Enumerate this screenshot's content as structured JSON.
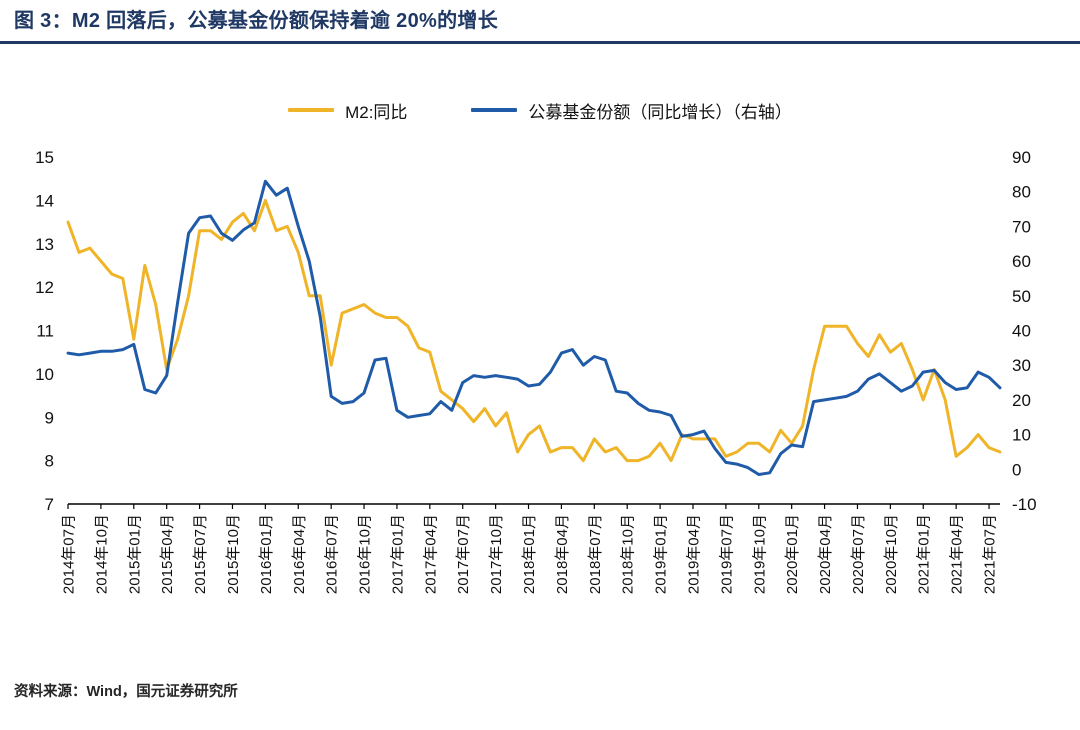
{
  "page": {
    "title": "图 3：M2 回落后，公募基金份额保持着逾 20%的增长",
    "source_note": "资料来源：Wind，国元证券研究所"
  },
  "colors": {
    "accent_navy": "#1F3864",
    "m2_yellow": "#F0B428",
    "fund_blue": "#1F5BA8",
    "axis_black": "#000000"
  },
  "chart_data": {
    "type": "line",
    "title": "",
    "xlabel": "",
    "ylabel_left": "",
    "ylabel_right": "",
    "grid": false,
    "legend_position": "top",
    "x_tick_every": 3,
    "x_tick_labels": [
      "2014年07月",
      "2014年10月",
      "2015年01月",
      "2015年04月",
      "2015年07月",
      "2015年10月",
      "2016年01月",
      "2016年04月",
      "2016年07月",
      "2016年10月",
      "2017年01月",
      "2017年04月",
      "2017年07月",
      "2017年10月",
      "2018年01月",
      "2018年04月",
      "2018年07月",
      "2018年10月",
      "2019年01月",
      "2019年04月",
      "2019年07月",
      "2019年10月",
      "2020年01月",
      "2020年04月",
      "2020年07月",
      "2020年10月",
      "2021年01月",
      "2021年04月",
      "2021年07月"
    ],
    "left_axis": {
      "min": 7,
      "max": 15,
      "step": 1,
      "ticks": [
        7,
        8,
        9,
        10,
        11,
        12,
        13,
        14,
        15
      ]
    },
    "right_axis": {
      "min": -10,
      "max": 90,
      "step": 10,
      "ticks": [
        -10,
        0,
        10,
        20,
        30,
        40,
        50,
        60,
        70,
        80,
        90
      ]
    },
    "series": [
      {
        "name": "M2:同比",
        "axis": "left",
        "color": "#F0B428",
        "values": [
          13.5,
          12.8,
          12.9,
          12.6,
          12.3,
          12.2,
          10.8,
          12.5,
          11.6,
          10.1,
          10.8,
          11.8,
          13.3,
          13.3,
          13.1,
          13.5,
          13.7,
          13.3,
          14.0,
          13.3,
          13.4,
          12.8,
          11.8,
          11.8,
          10.2,
          11.4,
          11.5,
          11.6,
          11.4,
          11.3,
          11.3,
          11.1,
          10.6,
          10.5,
          9.6,
          9.4,
          9.2,
          8.9,
          9.2,
          8.8,
          9.1,
          8.2,
          8.6,
          8.8,
          8.2,
          8.3,
          8.3,
          8.0,
          8.5,
          8.2,
          8.3,
          8.0,
          8.0,
          8.1,
          8.4,
          8.0,
          8.6,
          8.5,
          8.5,
          8.5,
          8.1,
          8.2,
          8.4,
          8.4,
          8.2,
          8.7,
          8.4,
          8.8,
          10.1,
          11.1,
          11.1,
          11.1,
          10.7,
          10.4,
          10.9,
          10.5,
          10.7,
          10.1,
          9.4,
          10.1,
          9.4,
          8.1,
          8.3,
          8.6,
          8.3,
          8.2
        ]
      },
      {
        "name": "公募基金份额（同比增长）（右轴）",
        "axis": "right",
        "color": "#1F5BA8",
        "values": [
          33.5,
          33,
          33.5,
          34,
          34,
          34.5,
          36,
          23,
          22,
          27,
          48,
          68,
          72.5,
          73,
          68,
          66,
          69,
          71,
          83,
          79,
          81,
          70,
          60,
          44,
          21,
          19,
          19.5,
          22,
          31.5,
          32,
          17,
          15,
          15.5,
          16,
          19.5,
          17,
          25,
          27,
          26.5,
          27,
          26.5,
          26,
          24,
          24.5,
          28,
          33.5,
          34.5,
          30,
          32.5,
          31.5,
          22.5,
          22,
          19,
          17,
          16.5,
          15.5,
          9.5,
          10,
          11,
          6,
          2,
          1.5,
          0.5,
          -1.5,
          -1,
          4.5,
          7,
          6.5,
          19.5,
          20,
          20.5,
          21,
          22.5,
          26,
          27.5,
          25,
          22.5,
          24,
          28,
          28.5,
          25,
          23,
          23.5,
          28,
          26.5,
          23.5
        ]
      }
    ]
  }
}
